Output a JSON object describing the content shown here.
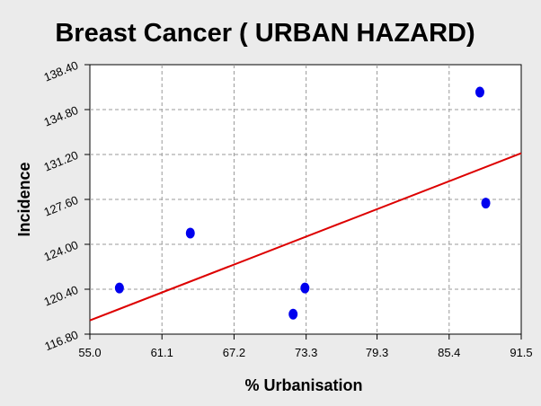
{
  "chart_data": {
    "type": "scatter",
    "title": "Breast Cancer ( URBAN HAZARD)",
    "xlabel": "% Urbanisation",
    "ylabel": "Incidence",
    "xlim": [
      55.0,
      91.5
    ],
    "ylim": [
      116.8,
      138.4
    ],
    "x_ticks": [
      "55.0",
      "61.1",
      "67.2",
      "73.3",
      "79.3",
      "85.4",
      "91.5"
    ],
    "y_ticks": [
      "116.80",
      "120.40",
      "124.00",
      "127.60",
      "131.20",
      "134.80",
      "138.40"
    ],
    "grid": true,
    "series": [
      {
        "points": [
          {
            "x": 57.5,
            "y": 120.5
          },
          {
            "x": 63.5,
            "y": 124.9
          },
          {
            "x": 72.2,
            "y": 118.4
          },
          {
            "x": 73.2,
            "y": 120.5
          },
          {
            "x": 88.0,
            "y": 136.2
          },
          {
            "x": 88.5,
            "y": 127.3
          }
        ]
      }
    ],
    "trendline": {
      "x": [
        55.0,
        91.5
      ],
      "y": [
        117.9,
        131.3
      ]
    },
    "colors": {
      "points": "#0000ee",
      "trendline": "#dd0000",
      "grid": "#999999",
      "background": "#ebebeb",
      "plot_area": "#ffffff"
    }
  }
}
